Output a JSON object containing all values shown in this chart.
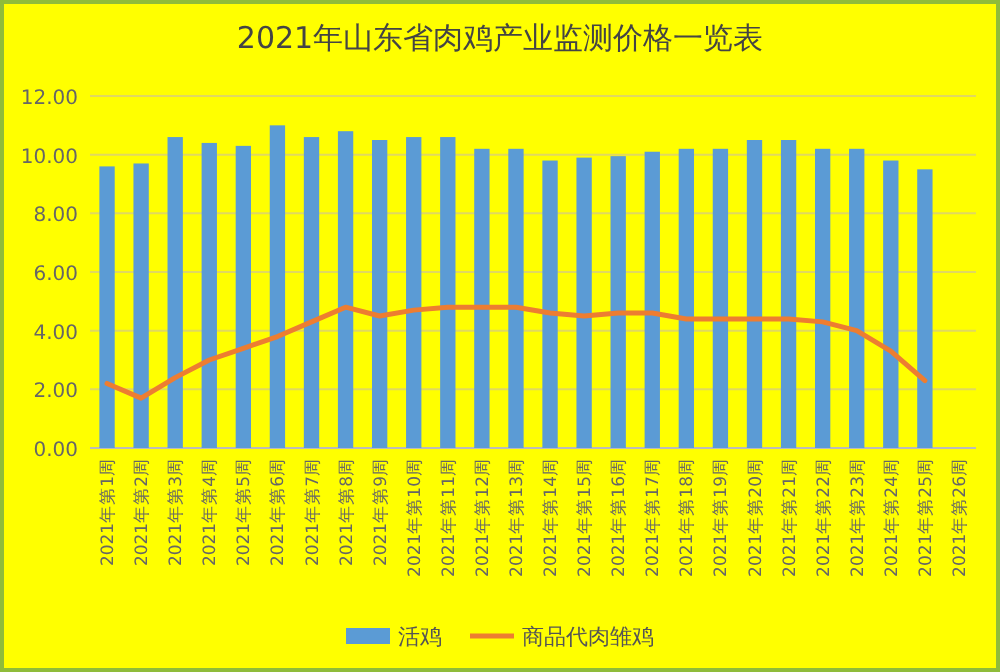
{
  "chart_data": {
    "type": "bar",
    "title": "2021年山东省肉鸡产业监测价格一览表",
    "categories": [
      "2021年第1周",
      "2021年第2周",
      "2021年第3周",
      "2021年第4周",
      "2021年第5周",
      "2021年第6周",
      "2021年第7周",
      "2021年第8周",
      "2021年第9周",
      "2021年第10周",
      "2021年第11周",
      "2021年第12周",
      "2021年第13周",
      "2021年第14周",
      "2021年第15周",
      "2021年第16周",
      "2021年第17周",
      "2021年第18周",
      "2021年第19周",
      "2021年第20周",
      "2021年第21周",
      "2021年第22周",
      "2021年第23周",
      "2021年第24周",
      "2021年第25周",
      "2021年第26周"
    ],
    "series": [
      {
        "name": "活鸡",
        "color": "#5b9bd5",
        "values": [
          9.6,
          9.7,
          10.6,
          10.4,
          10.3,
          11.0,
          10.6,
          10.8,
          10.5,
          10.6,
          10.6,
          10.2,
          10.2,
          9.8,
          9.9,
          9.95,
          10.1,
          10.2,
          10.2,
          10.5,
          10.5,
          10.2,
          10.2,
          9.8,
          9.5,
          null
        ]
      },
      {
        "name": "商品代肉雏鸡",
        "type": "line",
        "color": "#ed7d31",
        "values": [
          2.2,
          1.7,
          2.4,
          3.0,
          3.4,
          3.8,
          4.3,
          4.8,
          4.5,
          4.7,
          4.8,
          4.8,
          4.8,
          4.6,
          4.5,
          4.6,
          4.6,
          4.4,
          4.4,
          4.4,
          4.4,
          4.3,
          4.0,
          3.3,
          2.3,
          null
        ]
      }
    ],
    "ylim": [
      0,
      12
    ],
    "yticks": [
      {
        "value": 0,
        "label": "0.00"
      },
      {
        "value": 2,
        "label": "2.00"
      },
      {
        "value": 4,
        "label": "4.00"
      },
      {
        "value": 6,
        "label": "6.00"
      },
      {
        "value": 8,
        "label": "8.00"
      },
      {
        "value": 10,
        "label": "10.00"
      },
      {
        "value": 12,
        "label": "12.00"
      }
    ],
    "grid": "y",
    "legend": "bottom",
    "marker": "none"
  }
}
